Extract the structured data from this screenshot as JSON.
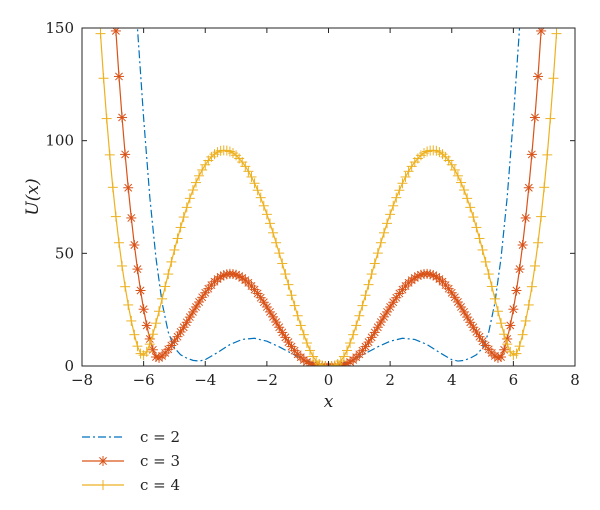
{
  "chart_data": {
    "type": "line",
    "title": "",
    "xlabel": "x",
    "ylabel": "U(x)",
    "xlim": [
      -8,
      8
    ],
    "ylim": [
      0,
      150
    ],
    "xticks": [
      -8,
      -6,
      -4,
      -2,
      0,
      2,
      4,
      6,
      8
    ],
    "yticks": [
      0,
      50,
      100,
      150
    ],
    "xtick_labels": [
      "−8",
      "−6",
      "−4",
      "−2",
      "0",
      "2",
      "4",
      "6",
      "8"
    ],
    "ytick_labels": [
      "0",
      "50",
      "100",
      "150"
    ],
    "grid": false,
    "legend_position": "below",
    "series": [
      {
        "name": "c = 2",
        "color": "#0072BD",
        "line_style": "dash-dot",
        "marker": "none",
        "x": [
          -6.6,
          -6.2,
          -6.0,
          -5.8,
          -5.6,
          -5.4,
          -5.2,
          -5.0,
          -4.8,
          -4.6,
          -4.4,
          -4.2,
          -4.0,
          -3.6,
          -3.2,
          -2.8,
          -2.4,
          -2.0,
          -1.6,
          -1.2,
          -0.8,
          -0.4,
          0.0,
          0.4,
          0.8,
          1.2,
          1.6,
          2.0,
          2.4,
          2.8,
          3.2,
          3.6,
          4.0,
          4.2,
          4.4,
          4.6,
          4.8,
          5.0,
          5.2,
          5.4,
          5.6,
          5.8,
          6.0,
          6.2,
          6.6
        ],
        "y": [
          160,
          150,
          110,
          75,
          48,
          28,
          15,
          8,
          5,
          3.5,
          2.5,
          2.2,
          2.8,
          6.0,
          9.5,
          11.8,
          12.3,
          11.0,
          8.5,
          5.6,
          2.8,
          0.8,
          0.0,
          0.8,
          2.8,
          5.6,
          8.5,
          11.0,
          12.3,
          11.8,
          9.5,
          6.0,
          2.8,
          2.2,
          2.5,
          3.5,
          5,
          8,
          15,
          28,
          48,
          75,
          110,
          150,
          160
        ]
      },
      {
        "name": "c = 3",
        "color": "#D95319",
        "line_style": "solid",
        "marker": "asterisk",
        "x": [
          -6.9,
          -6.8,
          -6.7,
          -6.6,
          -6.5,
          -6.4,
          -6.3,
          -6.2,
          -6.1,
          -6.0,
          -5.9,
          -5.8,
          -5.7,
          -5.6,
          -5.5,
          -5.4,
          -5.3,
          -5.2,
          -5.1,
          -5.0,
          -4.9,
          -4.8,
          -4.7,
          -4.6,
          -4.5,
          -4.4,
          -4.3,
          -4.2,
          -4.1,
          -4.0,
          -3.9,
          -3.8,
          -3.7,
          -3.6,
          -3.5,
          -3.4,
          -3.3,
          -3.2,
          -3.1,
          -3.0,
          -2.9,
          -2.8,
          -2.7,
          -2.6,
          -2.5,
          -2.4,
          -2.3,
          -2.2,
          -2.1,
          -2.0,
          -1.9,
          -1.8,
          -1.7,
          -1.6,
          -1.5,
          -1.4,
          -1.3,
          -1.2,
          -1.1,
          -1.0,
          -0.9,
          -0.8,
          -0.7,
          -0.6,
          -0.5,
          -0.4,
          -0.3,
          -0.2,
          -0.1,
          0.0,
          0.1,
          0.2,
          0.3,
          0.4,
          0.5,
          0.6,
          0.7,
          0.8,
          0.9,
          1.0,
          1.1,
          1.2,
          1.3,
          1.4,
          1.5,
          1.6,
          1.7,
          1.8,
          1.9,
          2.0,
          2.1,
          2.2,
          2.3,
          2.4,
          2.5,
          2.6,
          2.7,
          2.8,
          2.9,
          3.0,
          3.1,
          3.2,
          3.3,
          3.4,
          3.5,
          3.6,
          3.7,
          3.8,
          3.9,
          4.0,
          4.1,
          4.2,
          4.3,
          4.4,
          4.5,
          4.6,
          4.7,
          4.8,
          4.9,
          5.0,
          5.1,
          5.2,
          5.3,
          5.4,
          5.5,
          5.6,
          5.7,
          5.8,
          5.9,
          6.0,
          6.1,
          6.2,
          6.3,
          6.4,
          6.5,
          6.6,
          6.7,
          6.8,
          6.9
        ],
        "y": [
          148.7,
          128.5,
          110.3,
          93.9,
          79.1,
          65.7,
          53.7,
          43.0,
          33.5,
          25.2,
          18.0,
          12.0,
          7.2,
          4.0,
          3.6,
          4.5,
          5.8,
          7.4,
          9.1,
          11.0,
          13.0,
          15.1,
          17.2,
          19.4,
          21.7,
          24.0,
          26.2,
          28.4,
          30.5,
          32.5,
          34.3,
          35.9,
          37.4,
          38.6,
          39.6,
          40.3,
          40.7,
          40.9,
          40.8,
          40.5,
          39.9,
          39.1,
          38.1,
          36.9,
          35.5,
          33.9,
          32.2,
          30.3,
          28.3,
          26.2,
          24.0,
          21.8,
          19.5,
          17.2,
          14.9,
          12.7,
          10.6,
          8.6,
          6.8,
          5.2,
          3.9,
          2.7,
          1.8,
          1.1,
          0.6,
          0.3,
          0.1,
          0.0,
          0.0,
          0.0,
          0.0,
          0.0,
          0.1,
          0.3,
          0.6,
          1.1,
          1.8,
          2.7,
          3.9,
          5.2,
          6.8,
          8.6,
          10.6,
          12.7,
          14.9,
          17.2,
          19.5,
          21.8,
          24.0,
          26.2,
          28.3,
          30.3,
          32.2,
          33.9,
          35.5,
          36.9,
          38.1,
          39.1,
          39.9,
          40.5,
          40.8,
          40.9,
          40.7,
          40.3,
          39.6,
          38.6,
          37.4,
          35.9,
          34.3,
          32.5,
          30.5,
          28.4,
          26.2,
          24.0,
          21.7,
          19.4,
          17.2,
          15.1,
          13.0,
          11.0,
          9.1,
          7.4,
          5.8,
          4.5,
          3.6,
          4.0,
          7.2,
          12.0,
          18.0,
          25.2,
          33.5,
          43.0,
          53.7,
          65.7,
          79.1,
          93.9,
          110.3,
          128.5,
          148.7
        ]
      },
      {
        "name": "c = 4",
        "color": "#EDB120",
        "line_style": "solid",
        "marker": "plus",
        "x": [
          -7.4,
          -7.3,
          -7.2,
          -7.1,
          -7.0,
          -6.9,
          -6.8,
          -6.7,
          -6.6,
          -6.5,
          -6.4,
          -6.3,
          -6.2,
          -6.1,
          -6.0,
          -5.9,
          -5.8,
          -5.7,
          -5.6,
          -5.5,
          -5.4,
          -5.3,
          -5.2,
          -5.1,
          -5.0,
          -4.9,
          -4.8,
          -4.7,
          -4.6,
          -4.5,
          -4.4,
          -4.3,
          -4.2,
          -4.1,
          -4.0,
          -3.9,
          -3.8,
          -3.7,
          -3.6,
          -3.5,
          -3.4,
          -3.3,
          -3.2,
          -3.1,
          -3.0,
          -2.9,
          -2.8,
          -2.7,
          -2.6,
          -2.5,
          -2.4,
          -2.3,
          -2.2,
          -2.1,
          -2.0,
          -1.9,
          -1.8,
          -1.7,
          -1.6,
          -1.5,
          -1.4,
          -1.3,
          -1.2,
          -1.1,
          -1.0,
          -0.9,
          -0.8,
          -0.7,
          -0.6,
          -0.5,
          -0.4,
          -0.3,
          -0.2,
          -0.1,
          0.0,
          0.1,
          0.2,
          0.3,
          0.4,
          0.5,
          0.6,
          0.7,
          0.8,
          0.9,
          1.0,
          1.1,
          1.2,
          1.3,
          1.4,
          1.5,
          1.6,
          1.7,
          1.8,
          1.9,
          2.0,
          2.1,
          2.2,
          2.3,
          2.4,
          2.5,
          2.6,
          2.7,
          2.8,
          2.9,
          3.0,
          3.1,
          3.2,
          3.3,
          3.4,
          3.5,
          3.6,
          3.7,
          3.8,
          3.9,
          4.0,
          4.1,
          4.2,
          4.3,
          4.4,
          4.5,
          4.6,
          4.7,
          4.8,
          4.9,
          5.0,
          5.1,
          5.2,
          5.3,
          5.4,
          5.5,
          5.6,
          5.7,
          5.8,
          5.9,
          6.0,
          6.1,
          6.2,
          6.3,
          6.4,
          6.5,
          6.6,
          6.7,
          6.8,
          6.9,
          7.0,
          7.1,
          7.2,
          7.3,
          7.4
        ],
        "y": [
          147.5,
          127.7,
          109.8,
          93.7,
          79.3,
          66.3,
          54.7,
          44.4,
          35.2,
          27.1,
          20.0,
          13.9,
          8.8,
          5.5,
          4.8,
          6.3,
          9.7,
          14.1,
          19.0,
          24.3,
          29.8,
          35.3,
          40.8,
          46.2,
          51.5,
          56.6,
          61.5,
          66.1,
          70.4,
          74.4,
          78.1,
          81.4,
          84.4,
          87.0,
          89.3,
          91.2,
          92.8,
          94.0,
          94.9,
          95.5,
          95.7,
          95.6,
          95.2,
          94.5,
          93.5,
          92.1,
          90.5,
          88.6,
          86.4,
          83.9,
          81.1,
          78.0,
          74.7,
          71.1,
          67.3,
          63.3,
          59.1,
          54.7,
          50.1,
          45.5,
          40.8,
          36.1,
          31.4,
          26.8,
          22.3,
          18.0,
          13.9,
          10.2,
          6.9,
          4.2,
          2.2,
          0.9,
          0.2,
          0.0,
          0.0,
          0.0,
          0.2,
          0.9,
          2.2,
          4.2,
          6.9,
          10.2,
          13.9,
          18.0,
          22.3,
          26.8,
          31.4,
          36.1,
          40.8,
          45.5,
          50.1,
          54.7,
          59.1,
          63.3,
          67.3,
          71.1,
          74.7,
          78.0,
          81.1,
          83.9,
          86.4,
          88.6,
          90.5,
          92.1,
          93.5,
          94.5,
          95.2,
          95.6,
          95.7,
          95.5,
          94.9,
          94.0,
          92.8,
          91.2,
          89.3,
          87.0,
          84.4,
          81.4,
          78.1,
          74.4,
          70.4,
          66.1,
          61.5,
          56.6,
          51.5,
          46.2,
          40.8,
          35.3,
          29.8,
          24.3,
          19.0,
          14.1,
          9.7,
          6.3,
          4.8,
          5.5,
          8.8,
          13.9,
          20.0,
          27.1,
          35.2,
          44.4,
          54.7,
          66.3,
          79.3,
          93.7,
          109.8,
          127.7,
          147.5
        ]
      }
    ]
  }
}
